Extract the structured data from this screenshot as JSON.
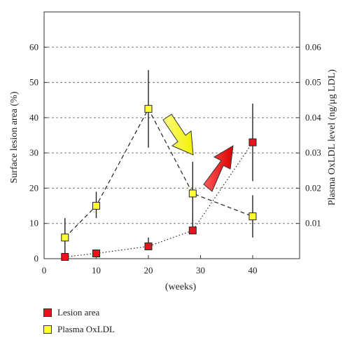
{
  "chart_data": {
    "type": "line",
    "x": [
      4,
      10,
      20,
      28.5,
      40
    ],
    "xlabel": "(weeks)",
    "xlim": [
      0,
      49
    ],
    "xticks": [
      0,
      10,
      20,
      30,
      40
    ],
    "ylabel_left": "Surface lesion area (%)",
    "ylim_left": [
      0,
      70
    ],
    "yticks_left": [
      0,
      10,
      20,
      30,
      40,
      50,
      60
    ],
    "ylabel_right": "Plasma OxLDL level (ng/μg LDL)",
    "ylim_right": [
      0,
      0.07
    ],
    "yticks_right": [
      "0.01",
      "0.02",
      "0.03",
      "0.04",
      "0.05",
      "0.06"
    ],
    "grid": "horizontal-dotted",
    "series": [
      {
        "name": "Lesion area",
        "axis": "left",
        "color": "#e8141b",
        "line_style": "dotted",
        "values": [
          0.5,
          1.5,
          3.5,
          8,
          33
        ],
        "err_low": [
          0.5,
          1.5,
          3.5,
          7,
          22
        ],
        "err_high": [
          0.5,
          2.5,
          6,
          11.5,
          44
        ]
      },
      {
        "name": "Plasma OxLDL",
        "axis": "right",
        "color": "#ffff33",
        "line_style": "dashed",
        "values": [
          0.006,
          0.015,
          0.0425,
          0.0185,
          0.012
        ],
        "err_low": [
          0.0005,
          0.0115,
          0.0315,
          0.0105,
          0.006
        ],
        "err_high": [
          0.0115,
          0.019,
          0.0535,
          0.0275,
          0.018
        ]
      }
    ],
    "annotations": [
      {
        "type": "arrow",
        "direction": "down-right",
        "color": "#ffff33"
      },
      {
        "type": "arrow",
        "direction": "up-right",
        "color": "#e8141b"
      }
    ],
    "legend_position": "bottom-left"
  }
}
